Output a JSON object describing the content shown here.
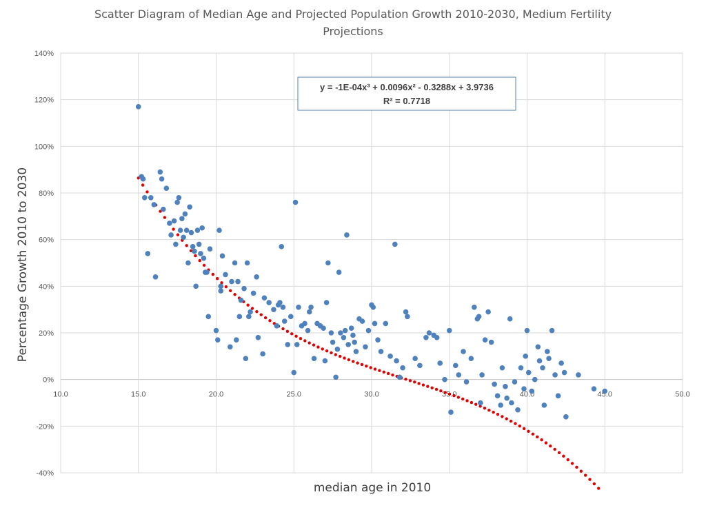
{
  "chart_data": {
    "type": "scatter",
    "title_line1": "Scatter Diagram of Median Age and Projected Population Growth 2010-2030, Medium Fertility",
    "title_line2": "Projections",
    "xlabel": "median age in 2010",
    "ylabel": "Percentage Growth 2010 to 2030",
    "xlim": [
      10,
      50
    ],
    "ylim": [
      -40,
      140
    ],
    "x_ticks": [
      "10.0",
      "15.0",
      "20.0",
      "25.0",
      "30.0",
      "35.0",
      "40.0",
      "45.0",
      "50.0"
    ],
    "y_ticks": [
      "-40%",
      "-20%",
      "0%",
      "20%",
      "40%",
      "60%",
      "80%",
      "100%",
      "120%",
      "140%"
    ],
    "grid": true,
    "trendline": {
      "type": "polynomial",
      "order": 3,
      "equation": "y = -1E-04x³ + 0.0096x² - 0.3288x + 3.9736",
      "r_squared": "R² = 0.7718",
      "coefficients_percent": [
        -0.01,
        0.96,
        -32.88,
        397.36
      ],
      "x_range": [
        15.0,
        44.6
      ]
    },
    "colors": {
      "points": "#4f81bd",
      "trendline": "#e00000"
    },
    "points": [
      [
        15.0,
        117
      ],
      [
        15.2,
        87
      ],
      [
        15.3,
        86
      ],
      [
        15.4,
        78
      ],
      [
        15.6,
        54
      ],
      [
        15.8,
        78
      ],
      [
        16.0,
        75
      ],
      [
        16.1,
        44
      ],
      [
        16.4,
        89
      ],
      [
        16.5,
        86
      ],
      [
        16.6,
        73
      ],
      [
        16.8,
        82
      ],
      [
        17.0,
        67
      ],
      [
        17.1,
        62
      ],
      [
        17.3,
        68
      ],
      [
        17.4,
        58
      ],
      [
        17.5,
        76
      ],
      [
        17.6,
        78
      ],
      [
        17.7,
        64
      ],
      [
        17.8,
        69
      ],
      [
        17.9,
        61
      ],
      [
        18.0,
        71
      ],
      [
        18.1,
        64
      ],
      [
        18.2,
        50
      ],
      [
        18.3,
        74
      ],
      [
        18.4,
        63
      ],
      [
        18.5,
        57
      ],
      [
        18.6,
        55
      ],
      [
        18.7,
        40
      ],
      [
        18.8,
        64
      ],
      [
        18.9,
        58
      ],
      [
        19.0,
        54
      ],
      [
        19.1,
        65
      ],
      [
        19.2,
        52
      ],
      [
        19.3,
        46
      ],
      [
        19.4,
        46
      ],
      [
        19.5,
        27
      ],
      [
        19.6,
        56
      ],
      [
        20.0,
        21
      ],
      [
        20.1,
        17
      ],
      [
        20.2,
        64
      ],
      [
        20.3,
        40
      ],
      [
        20.3,
        38
      ],
      [
        20.4,
        53
      ],
      [
        20.6,
        45
      ],
      [
        20.9,
        14
      ],
      [
        21.0,
        42
      ],
      [
        21.2,
        50
      ],
      [
        21.3,
        17
      ],
      [
        21.4,
        42
      ],
      [
        21.5,
        27
      ],
      [
        21.6,
        34
      ],
      [
        21.8,
        39
      ],
      [
        21.9,
        9
      ],
      [
        22.0,
        50
      ],
      [
        22.1,
        27
      ],
      [
        22.2,
        29
      ],
      [
        22.4,
        37
      ],
      [
        22.6,
        44
      ],
      [
        22.7,
        18
      ],
      [
        23.0,
        11
      ],
      [
        23.1,
        35
      ],
      [
        23.4,
        33
      ],
      [
        23.7,
        30
      ],
      [
        23.9,
        23
      ],
      [
        24.0,
        32
      ],
      [
        24.1,
        33
      ],
      [
        24.2,
        57
      ],
      [
        24.3,
        31
      ],
      [
        24.4,
        25
      ],
      [
        24.6,
        15
      ],
      [
        24.8,
        27
      ],
      [
        25.0,
        3
      ],
      [
        25.1,
        76
      ],
      [
        25.2,
        15
      ],
      [
        25.3,
        31
      ],
      [
        25.5,
        23
      ],
      [
        25.7,
        24
      ],
      [
        25.9,
        21
      ],
      [
        26.0,
        29
      ],
      [
        26.1,
        31
      ],
      [
        26.3,
        9
      ],
      [
        26.5,
        24
      ],
      [
        26.7,
        23
      ],
      [
        26.9,
        22
      ],
      [
        27.0,
        8
      ],
      [
        27.1,
        33
      ],
      [
        27.2,
        50
      ],
      [
        27.4,
        20
      ],
      [
        27.5,
        16
      ],
      [
        27.7,
        1
      ],
      [
        27.8,
        13
      ],
      [
        27.9,
        46
      ],
      [
        28.0,
        20
      ],
      [
        28.2,
        18
      ],
      [
        28.3,
        21
      ],
      [
        28.4,
        62
      ],
      [
        28.5,
        15
      ],
      [
        28.7,
        22
      ],
      [
        28.8,
        19
      ],
      [
        28.9,
        16
      ],
      [
        29.0,
        12
      ],
      [
        29.2,
        26
      ],
      [
        29.4,
        25
      ],
      [
        29.6,
        14
      ],
      [
        29.8,
        21
      ],
      [
        30.0,
        32
      ],
      [
        30.1,
        31
      ],
      [
        30.2,
        24
      ],
      [
        30.4,
        17
      ],
      [
        30.6,
        12
      ],
      [
        30.9,
        24
      ],
      [
        31.2,
        10
      ],
      [
        31.5,
        58
      ],
      [
        31.6,
        8
      ],
      [
        31.8,
        1
      ],
      [
        32.0,
        5
      ],
      [
        32.2,
        29
      ],
      [
        32.3,
        27
      ],
      [
        32.8,
        9
      ],
      [
        33.1,
        6
      ],
      [
        33.5,
        18
      ],
      [
        33.7,
        20
      ],
      [
        34.0,
        19
      ],
      [
        34.2,
        18
      ],
      [
        34.4,
        7
      ],
      [
        34.7,
        0
      ],
      [
        35.0,
        21
      ],
      [
        35.1,
        -14
      ],
      [
        35.4,
        6
      ],
      [
        35.6,
        2
      ],
      [
        35.9,
        12
      ],
      [
        36.1,
        -1
      ],
      [
        36.4,
        9
      ],
      [
        36.6,
        31
      ],
      [
        36.8,
        26
      ],
      [
        36.9,
        27
      ],
      [
        37.0,
        -10
      ],
      [
        37.1,
        2
      ],
      [
        37.3,
        17
      ],
      [
        37.5,
        29
      ],
      [
        37.7,
        16
      ],
      [
        37.9,
        -2
      ],
      [
        38.1,
        -7
      ],
      [
        38.3,
        -11
      ],
      [
        38.4,
        5
      ],
      [
        38.6,
        -3
      ],
      [
        38.7,
        -8
      ],
      [
        38.9,
        26
      ],
      [
        39.0,
        -10
      ],
      [
        39.2,
        -1
      ],
      [
        39.4,
        -13
      ],
      [
        39.6,
        5
      ],
      [
        39.8,
        -4
      ],
      [
        39.9,
        10
      ],
      [
        40.0,
        21
      ],
      [
        40.1,
        3
      ],
      [
        40.3,
        -5
      ],
      [
        40.5,
        0
      ],
      [
        40.7,
        14
      ],
      [
        40.8,
        8
      ],
      [
        41.0,
        5
      ],
      [
        41.1,
        -11
      ],
      [
        41.3,
        12
      ],
      [
        41.4,
        9
      ],
      [
        41.6,
        21
      ],
      [
        41.8,
        2
      ],
      [
        42.0,
        -7
      ],
      [
        42.2,
        7
      ],
      [
        42.4,
        3
      ],
      [
        42.5,
        -16
      ],
      [
        43.3,
        2
      ],
      [
        44.3,
        -4
      ],
      [
        45.0,
        -5
      ]
    ]
  }
}
